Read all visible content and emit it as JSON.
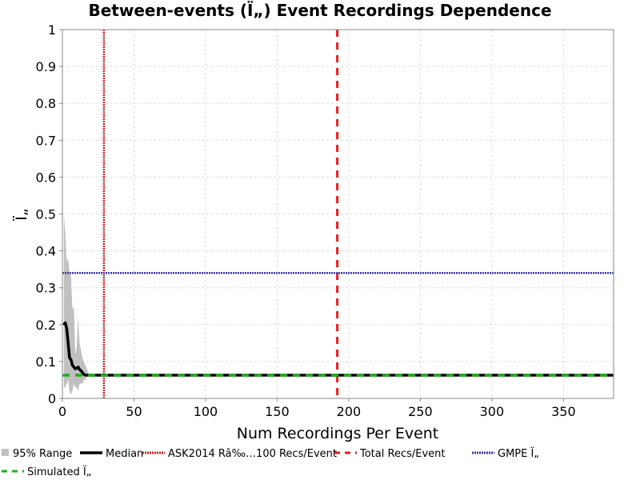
{
  "chart_data": {
    "type": "line",
    "title": "Between-events (Ï„) Event Recordings Dependence",
    "xlabel": "Num Recordings Per Event",
    "ylabel": "Ï„",
    "xlim": [
      0,
      385
    ],
    "ylim": [
      0,
      1
    ],
    "grid": true,
    "legend_position": "bottom",
    "x_ticks": [
      0,
      50,
      100,
      150,
      200,
      250,
      300,
      350
    ],
    "y_ticks": [
      0,
      0.1,
      0.2,
      0.3,
      0.4,
      0.5,
      0.6,
      0.7,
      0.8,
      0.9,
      1
    ],
    "x_tick_labels": [
      "0",
      "50",
      "100",
      "150",
      "200",
      "250",
      "300",
      "350"
    ],
    "y_tick_labels": [
      "0",
      "0.1",
      "0.2",
      "0.3",
      "0.4",
      "0.5",
      "0.6",
      "0.7",
      "0.8",
      "0.9",
      "1"
    ],
    "range_band": {
      "name": "95% Range",
      "color": "#c0c0c0",
      "x": [
        1,
        2,
        3,
        4,
        5,
        6,
        7,
        8,
        9,
        10,
        11,
        12,
        13,
        14,
        15,
        16,
        17,
        18,
        20,
        385
      ],
      "upper": [
        0.5,
        0.45,
        0.37,
        0.38,
        0.34,
        0.33,
        0.24,
        0.25,
        0.12,
        0.14,
        0.22,
        0.15,
        0.13,
        0.11,
        0.1,
        0.09,
        0.08,
        0.07,
        0.063,
        0.063
      ],
      "lower": [
        0.03,
        0.03,
        0.04,
        0.05,
        0.02,
        0.01,
        0.02,
        0.04,
        0.03,
        0.03,
        0.02,
        0.04,
        0.04,
        0.04,
        0.05,
        0.05,
        0.06,
        0.06,
        0.063,
        0.063
      ]
    },
    "series": [
      {
        "name": "Median",
        "color": "#000000",
        "x": [
          1,
          2,
          3,
          4,
          5,
          6,
          7,
          8,
          9,
          10,
          11,
          12,
          13,
          14,
          15,
          16,
          17,
          18,
          385
        ],
        "y": [
          0.2,
          0.205,
          0.19,
          0.15,
          0.11,
          0.105,
          0.09,
          0.085,
          0.08,
          0.082,
          0.085,
          0.078,
          0.075,
          0.07,
          0.065,
          0.063,
          0.063,
          0.063,
          0.063
        ]
      }
    ],
    "reference_lines": [
      {
        "name": "ASK2014 Râ‰…100 Recs/Event",
        "orientation": "vertical",
        "value": 29,
        "color": "#cc2222",
        "style": "dotted"
      },
      {
        "name": "Total Recs/Event",
        "orientation": "vertical",
        "value": 192,
        "color": "#e81c1c",
        "style": "dashed"
      },
      {
        "name": "GMPE Ï„",
        "orientation": "horizontal",
        "value": 0.34,
        "color": "#3a3aa0",
        "style": "dotted"
      },
      {
        "name": "Simulated Ï„",
        "orientation": "horizontal",
        "value": 0.063,
        "color": "#22aa22",
        "style": "dashed"
      }
    ],
    "legend": [
      {
        "label": "95% Range",
        "kind": "swatch",
        "color": "#c0c0c0"
      },
      {
        "label": "Median",
        "kind": "solid",
        "color": "#000000"
      },
      {
        "label": "ASK2014 Râ‰…100 Recs/Event",
        "kind": "dotted",
        "color": "#cc2222"
      },
      {
        "label": "Total Recs/Event",
        "kind": "dashed",
        "color": "#e81c1c"
      },
      {
        "label": "GMPE Ï„",
        "kind": "dotted",
        "color": "#3a3aa0"
      },
      {
        "label": "Simulated Ï„",
        "kind": "dashed",
        "color": "#22aa22"
      }
    ]
  }
}
